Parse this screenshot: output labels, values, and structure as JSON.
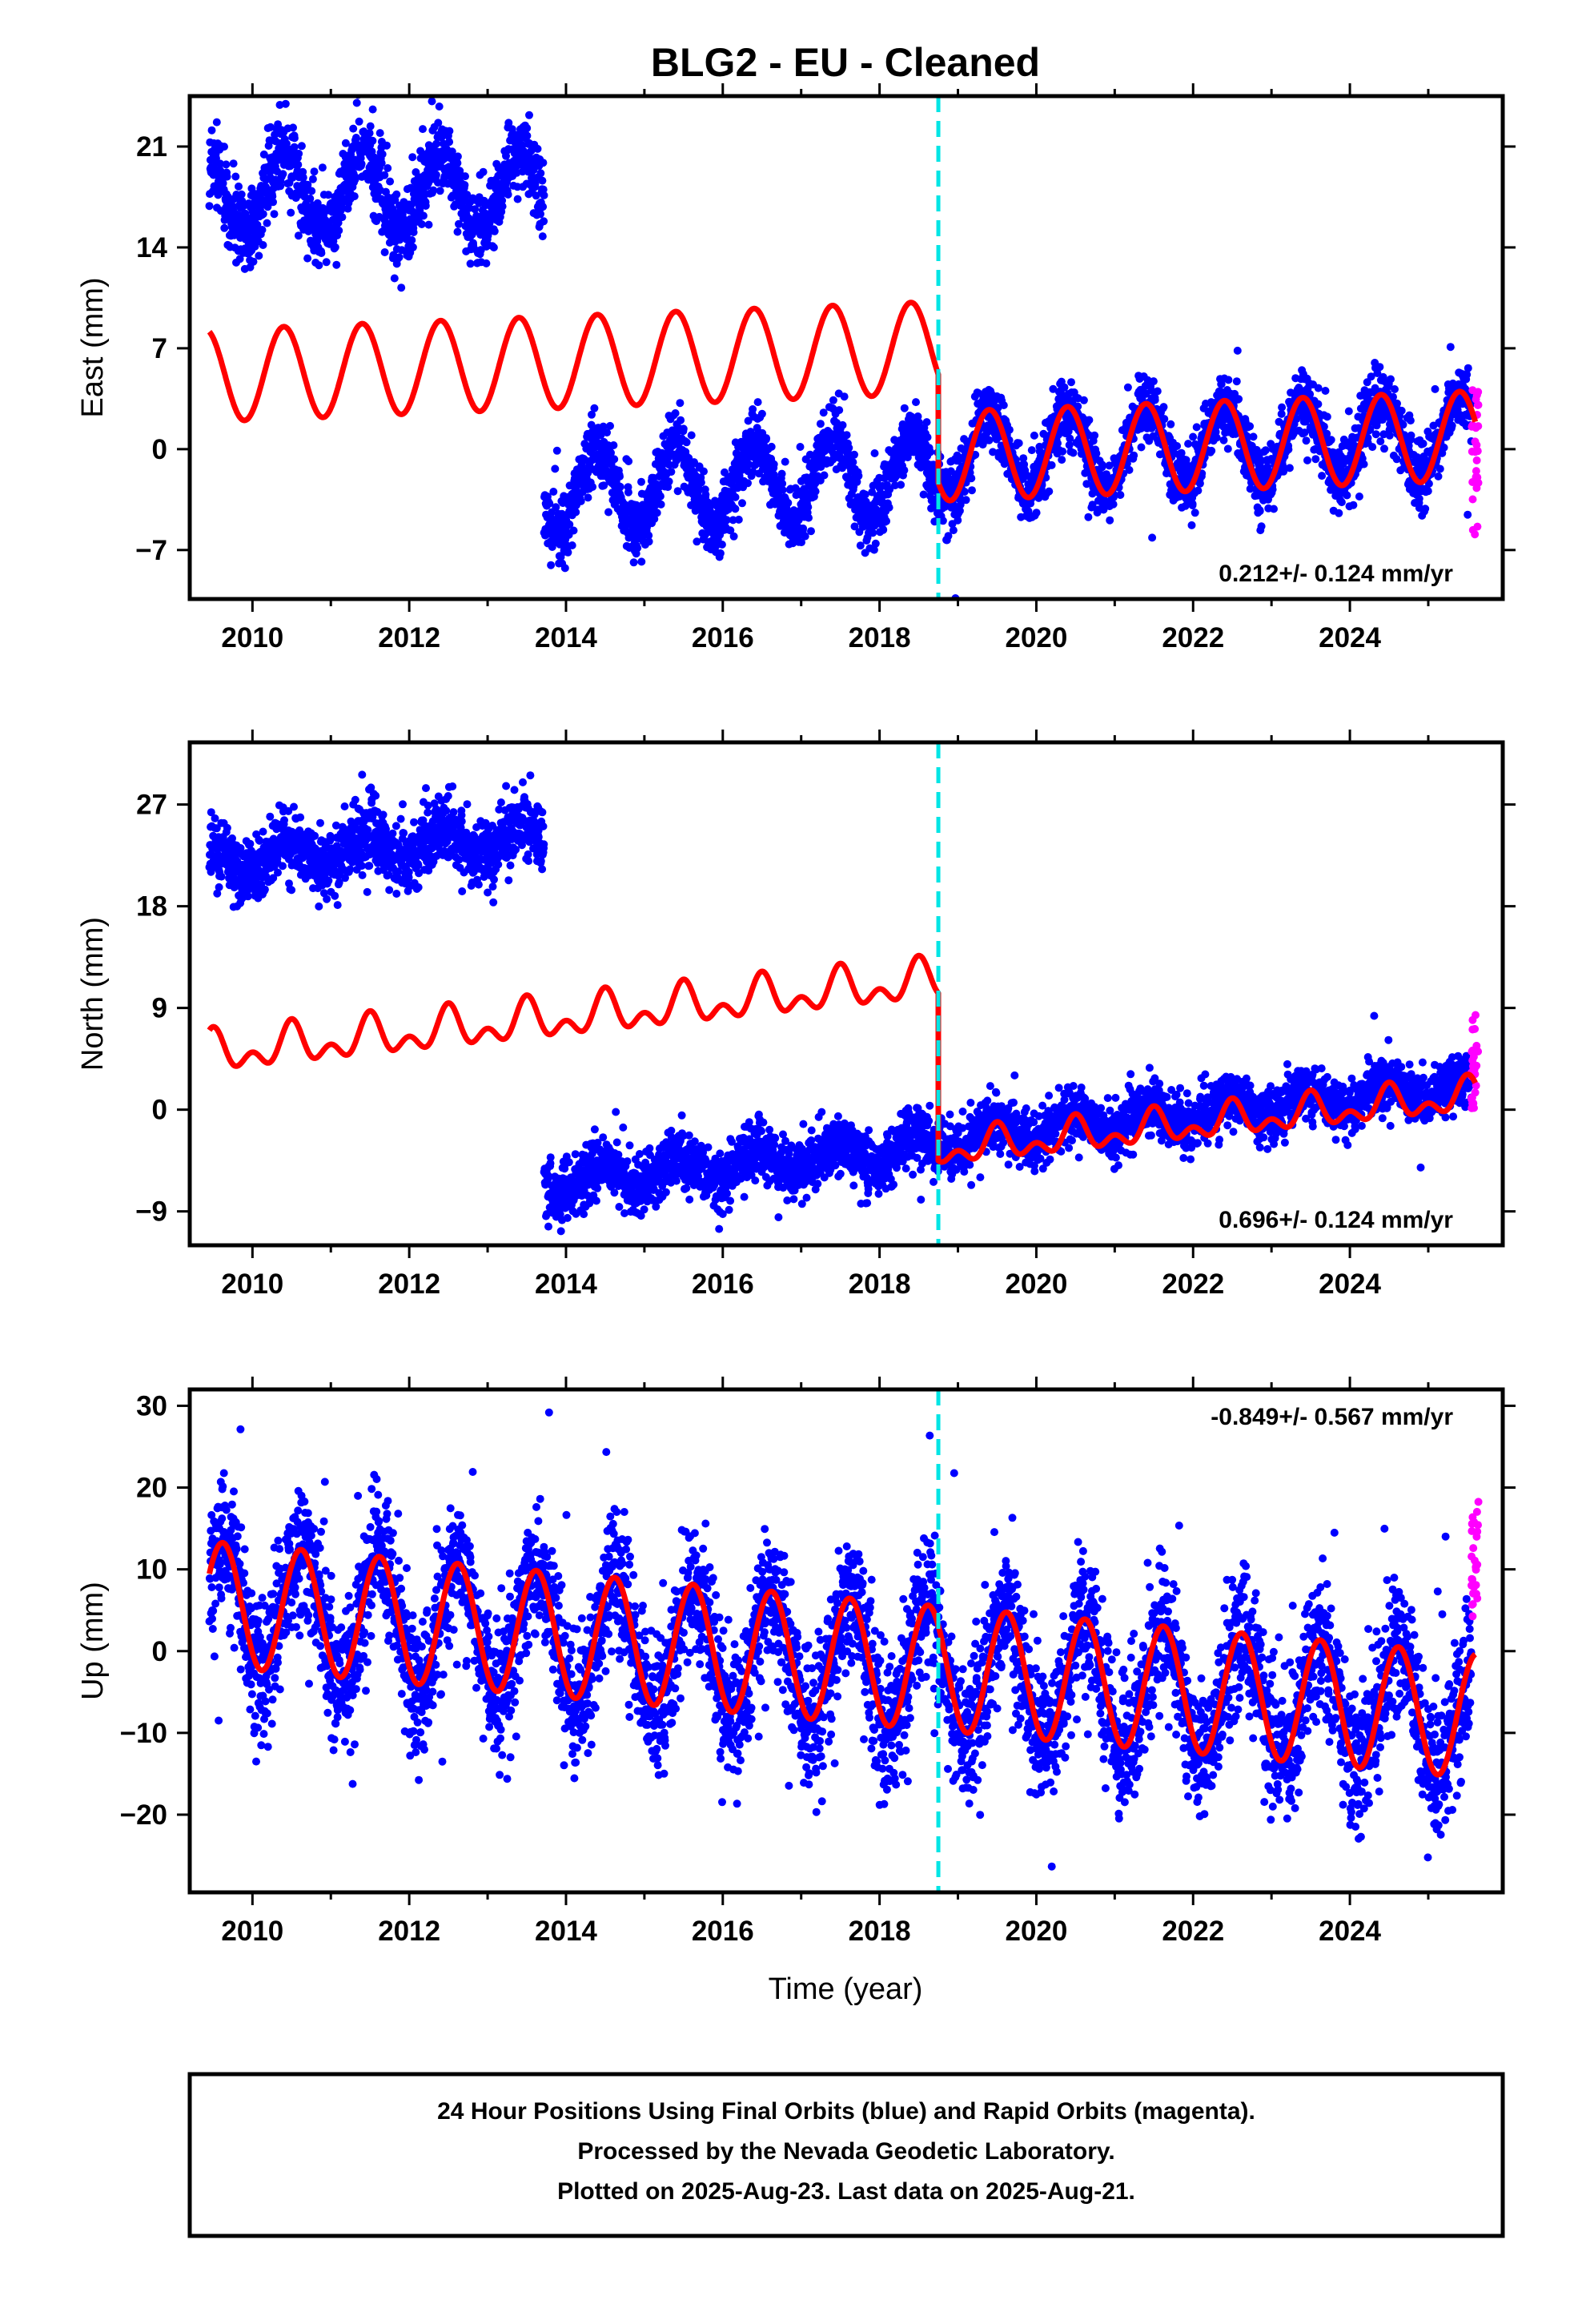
{
  "title": "BLG2  - EU - Cleaned",
  "x_axis_title": "Time (year)",
  "caption": [
    "24 Hour Positions Using Final Orbits (blue) and Rapid Orbits (magenta).",
    "Processed by the Nevada Geodetic Laboratory.",
    "Plotted on 2025-Aug-23. Last data on 2025-Aug-21."
  ],
  "colors": {
    "final_orbits": "#0000ff",
    "rapid_orbits": "#ff00ff",
    "model_fit": "#ff0000",
    "equipment_change": "#00e5e5",
    "frame": "#000000"
  },
  "chart_data": [
    {
      "type": "scatter",
      "panel": "east",
      "ylabel": "East (mm)",
      "rate_label": "0.212+/- 0.124 mm/yr",
      "xlim": [
        2009.2,
        2025.95
      ],
      "ylim": [
        -10.4,
        24.5
      ],
      "x_ticks": [
        2010,
        2012,
        2014,
        2016,
        2018,
        2020,
        2022,
        2024
      ],
      "y_ticks": [
        -7,
        0,
        7,
        14,
        21
      ],
      "y_tick_labels": [
        "−7",
        "0",
        "7",
        "14",
        "21"
      ],
      "offset_line_x": 2018.75,
      "grid": false,
      "series": [
        {
          "name": "Final orbits",
          "segments": [
            {
              "start": 2009.45,
              "end": 2013.72,
              "mean": 17.8,
              "amplitude": 2.8,
              "phase_peak": 0.4,
              "noise": 1.3
            },
            {
              "start": 2013.72,
              "end": 2018.75,
              "mean": -3.0,
              "amplitude": 2.8,
              "phase_peak": 0.4,
              "noise": 1.1,
              "trend": 0.25
            },
            {
              "start": 2018.75,
              "end": 2025.55,
              "mean": -0.4,
              "amplitude": 2.7,
              "phase_peak": 0.4,
              "noise": 1.1,
              "trend": 0.21
            }
          ]
        },
        {
          "name": "Rapid orbits",
          "x_range": [
            2025.55,
            2025.64
          ],
          "y_range": [
            -6.0,
            5.0
          ]
        },
        {
          "name": "Model fit",
          "segments": [
            {
              "start": 2009.45,
              "end": 2018.75,
              "mean": 5.1,
              "amplitude": 3.2,
              "phase_peak": 0.4,
              "trend": 0.21
            },
            {
              "start": 2018.75,
              "end": 2025.6,
              "mean": -0.5,
              "amplitude": 3.1,
              "phase_peak": 0.4,
              "trend": 0.21
            }
          ]
        }
      ]
    },
    {
      "type": "scatter",
      "panel": "north",
      "ylabel": "North (mm)",
      "rate_label": "0.696+/- 0.124 mm/yr",
      "xlim": [
        2009.2,
        2025.95
      ],
      "ylim": [
        -12.0,
        32.5
      ],
      "x_ticks": [
        2010,
        2012,
        2014,
        2016,
        2018,
        2020,
        2022,
        2024
      ],
      "y_ticks": [
        -9,
        0,
        9,
        18,
        27
      ],
      "y_tick_labels": [
        "−9",
        "0",
        "9",
        "18",
        "27"
      ],
      "offset_line_x": 2018.75,
      "grid": false,
      "series": [
        {
          "name": "Final orbits",
          "segments": [
            {
              "start": 2009.45,
              "end": 2013.72,
              "mean": 22.0,
              "amplitude": 1.2,
              "phase_peak": 0.45,
              "noise": 1.4,
              "trend": 0.55
            },
            {
              "start": 2013.72,
              "end": 2018.75,
              "mean": -6.3,
              "amplitude": 1.2,
              "phase_peak": 0.45,
              "noise": 1.2,
              "trend": 0.6
            },
            {
              "start": 2018.75,
              "end": 2025.55,
              "mean": -2.6,
              "amplitude": 1.0,
              "phase_peak": 0.45,
              "noise": 1.1,
              "trend": 0.7
            }
          ]
        },
        {
          "name": "Rapid orbits",
          "x_range": [
            2025.55,
            2025.64
          ],
          "y_range": [
            0.0,
            8.5
          ]
        },
        {
          "name": "Model fit",
          "segments": [
            {
              "start": 2009.45,
              "end": 2018.75,
              "mean": 4.9,
              "amplitude": 1.3,
              "semi_amplitude": 1.1,
              "phase_peak": 0.5,
              "trend": 0.7
            },
            {
              "start": 2018.75,
              "end": 2025.6,
              "mean": -3.6,
              "amplitude": 1.1,
              "semi_amplitude": 0.9,
              "phase_peak": 0.5,
              "trend": 0.7
            }
          ]
        }
      ]
    },
    {
      "type": "scatter",
      "panel": "up",
      "ylabel": "Up (mm)",
      "rate_label": "-0.849+/- 0.567 mm/yr",
      "xlim": [
        2009.2,
        2025.95
      ],
      "ylim": [
        -29.5,
        32.0
      ],
      "x_ticks": [
        2010,
        2012,
        2014,
        2016,
        2018,
        2020,
        2022,
        2024
      ],
      "y_ticks": [
        -20,
        -10,
        0,
        10,
        20,
        30
      ],
      "y_tick_labels": [
        "−20",
        "−10",
        "0",
        "10",
        "20",
        "30"
      ],
      "offset_line_x": 2018.75,
      "grid": false,
      "series": [
        {
          "name": "Final orbits",
          "segments": [
            {
              "start": 2009.45,
              "end": 2025.55,
              "mean": 5.5,
              "amplitude": 7.5,
              "phase_peak": 0.62,
              "noise": 4.2,
              "trend": -0.85
            }
          ]
        },
        {
          "name": "Rapid orbits",
          "x_range": [
            2025.55,
            2025.64
          ],
          "y_range": [
            4.0,
            19.0
          ]
        },
        {
          "name": "Model fit",
          "segments": [
            {
              "start": 2009.45,
              "end": 2025.6,
              "mean": 5.8,
              "amplitude": 7.6,
              "phase_peak": 0.62,
              "trend": -0.85
            }
          ]
        }
      ]
    }
  ]
}
